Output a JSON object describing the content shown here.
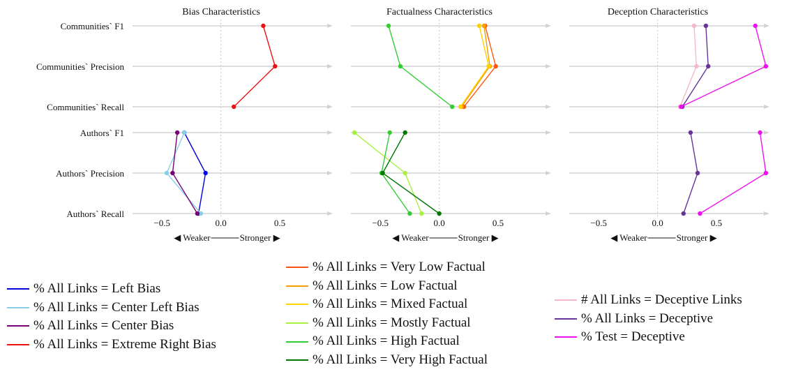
{
  "chart_data": {
    "type": "line",
    "direction_label": {
      "weaker": "◀ Weaker",
      "stronger": "Stronger ▶"
    },
    "rows": [
      "Communities` F1",
      "Communities` Precision",
      "Communities` Recall",
      "Authors` F1",
      "Authors` Precision",
      "Authors` Recall"
    ],
    "xlim": [
      -0.75,
      0.95
    ],
    "xticks": [
      -0.5,
      0.0,
      0.5
    ],
    "xtick_labels": [
      "−0.5",
      "0.0",
      "0.5"
    ],
    "panels": [
      {
        "title": "Bias Characteristics",
        "series": [
          {
            "name": "% All Links = Left Bias",
            "color": "#0000dd",
            "group": "authors",
            "values": [
              -0.31,
              -0.13,
              -0.19
            ]
          },
          {
            "name": "% All Links = Center Left Bias",
            "color": "#87cfe8",
            "group": "authors",
            "values": [
              -0.31,
              -0.46,
              -0.17
            ]
          },
          {
            "name": "% All Links = Center Bias",
            "color": "#7a007a",
            "group": "authors",
            "values": [
              -0.37,
              -0.41,
              -0.2
            ]
          },
          {
            "name": "% All Links = Extreme Right Bias",
            "color": "#ee1111",
            "group": "communities",
            "values": [
              0.36,
              0.46,
              0.11
            ]
          }
        ]
      },
      {
        "title": "Factualness Characteristics",
        "series": [
          {
            "name": "% All Links = Very Low Factual",
            "color": "#ff5511",
            "group": "communities",
            "values": [
              0.39,
              0.48,
              0.21
            ]
          },
          {
            "name": "% All Links = Low Factual",
            "color": "#f5a000",
            "group": "communities",
            "values": [
              0.38,
              0.43,
              0.19
            ]
          },
          {
            "name": "% All Links = Mixed Factual",
            "color": "#ffd000",
            "group": "communities",
            "values": [
              0.34,
              0.42,
              0.18
            ]
          },
          {
            "name": "% All Links = Mostly Factual",
            "color": "#a8f040",
            "group": "authors",
            "values": [
              -0.72,
              -0.29,
              -0.15
            ]
          },
          {
            "name": "% All Links = High Factual",
            "color": "#33cc33",
            "group": "communities",
            "values": [
              -0.43,
              -0.33,
              0.11
            ]
          },
          {
            "name": "% All Links = High Factual",
            "color": "#33cc33",
            "group": "authors",
            "values": [
              -0.42,
              -0.49,
              -0.25
            ]
          },
          {
            "name": "% All Links = Very High Factual",
            "color": "#007700",
            "group": "authors",
            "values": [
              -0.29,
              -0.48,
              0.0
            ]
          }
        ]
      },
      {
        "title": "Deception Characteristics",
        "series": [
          {
            "name": "# All Links = Deceptive Links",
            "color": "#f5b8c8",
            "group": "communities",
            "values": [
              0.31,
              0.33,
              0.19
            ]
          },
          {
            "name": "% All Links = Deceptive",
            "color": "#663399",
            "group": "communities",
            "values": [
              0.41,
              0.43,
              0.21
            ]
          },
          {
            "name": "% All Links = Deceptive",
            "color": "#663399",
            "group": "authors",
            "values": [
              0.28,
              0.34,
              0.22
            ]
          },
          {
            "name": "% Test = Deceptive",
            "color": "#ee11ee",
            "group": "communities",
            "values": [
              0.83,
              0.92,
              0.2
            ]
          },
          {
            "name": "% Test = Deceptive",
            "color": "#ee11ee",
            "group": "authors",
            "values": [
              0.87,
              0.92,
              0.36
            ]
          }
        ]
      }
    ],
    "legend": [
      {
        "placement": "bottom-left",
        "entries": [
          {
            "label": "% All Links = Left Bias",
            "color": "#0000dd"
          },
          {
            "label": "% All Links = Center Left Bias",
            "color": "#87cfe8"
          },
          {
            "label": "% All Links = Center Bias",
            "color": "#7a007a"
          },
          {
            "label": "% All Links = Extreme Right Bias",
            "color": "#ee1111"
          }
        ]
      },
      {
        "placement": "bottom-center",
        "entries": [
          {
            "label": "% All Links = Very Low Factual",
            "color": "#ff5511"
          },
          {
            "label": "% All Links = Low Factual",
            "color": "#f5a000"
          },
          {
            "label": "% All Links = Mixed Factual",
            "color": "#ffd000"
          },
          {
            "label": "% All Links = Mostly Factual",
            "color": "#a8f040"
          },
          {
            "label": "% All Links = High Factual",
            "color": "#33cc33"
          },
          {
            "label": "% All Links = Very High Factual",
            "color": "#007700"
          }
        ]
      },
      {
        "placement": "bottom-right",
        "entries": [
          {
            "label": "# All Links = Deceptive Links",
            "color": "#f5b8c8"
          },
          {
            "label": "% All Links = Deceptive",
            "color": "#663399"
          },
          {
            "label": "% Test = Deceptive",
            "color": "#ee11ee"
          }
        ]
      }
    ]
  }
}
